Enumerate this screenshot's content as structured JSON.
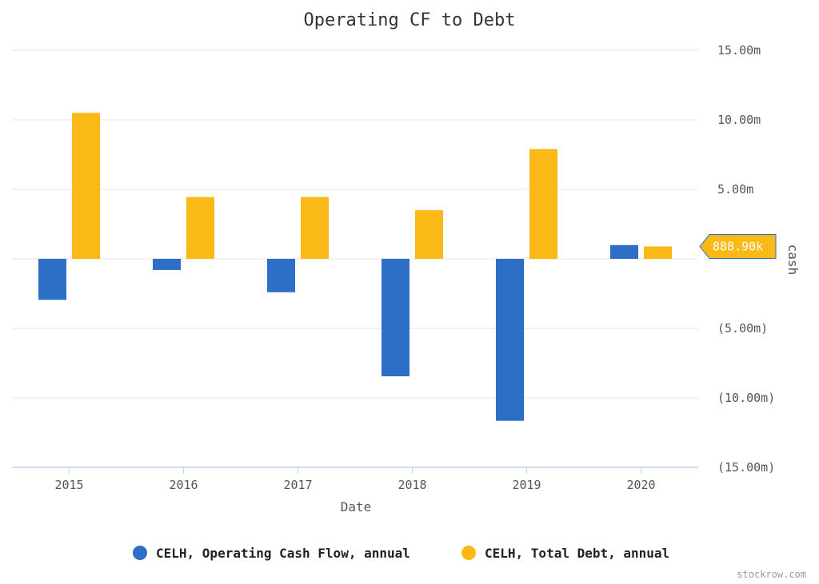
{
  "chart_data": {
    "type": "bar",
    "title": "Operating CF to Debt",
    "xlabel": "Date",
    "ylabel": "cash",
    "categories": [
      "2015",
      "2016",
      "2017",
      "2018",
      "2019",
      "2020"
    ],
    "series": [
      {
        "name": "CELH, Operating Cash Flow, annual",
        "color": "#2d6ec6",
        "values": [
          -2.95,
          -0.8,
          -2.4,
          -8.45,
          -11.65,
          0.99
        ]
      },
      {
        "name": "CELH, Total Debt, annual",
        "color": "#fbb917",
        "values": [
          10.5,
          4.45,
          4.45,
          3.5,
          7.9,
          0.8889
        ]
      }
    ],
    "ylim": [
      -15,
      15
    ],
    "yticks": [
      15,
      10,
      5,
      0,
      -5,
      -10,
      -15
    ],
    "ytick_labels": [
      "15.00m",
      "10.00m",
      "5.00m",
      "",
      "(5.00m)",
      "(10.00m)",
      "(15.00m)"
    ],
    "last_value_marker": {
      "label": "888.90k",
      "value": 0.8889,
      "color": "#fbb917"
    },
    "grid": true,
    "legend_position": "bottom",
    "credit": "stockrow.com"
  }
}
